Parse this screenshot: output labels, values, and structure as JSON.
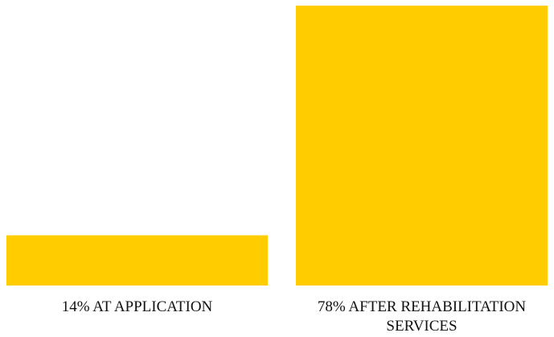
{
  "chart_data": {
    "type": "bar",
    "categories": [
      "14% AT APPLICATION",
      "78% AFTER REHABILITATION SERVICES"
    ],
    "category_lines": [
      [
        "14% AT APPLICATION"
      ],
      [
        "78% AFTER REHABILITATION",
        "SERVICES"
      ]
    ],
    "values": [
      14,
      78
    ],
    "unit": "%",
    "title": "",
    "xlabel": "",
    "ylabel": "",
    "ylim": [
      0,
      78
    ],
    "grid": false,
    "legend": "none",
    "bar_color": "#FFCC00"
  }
}
